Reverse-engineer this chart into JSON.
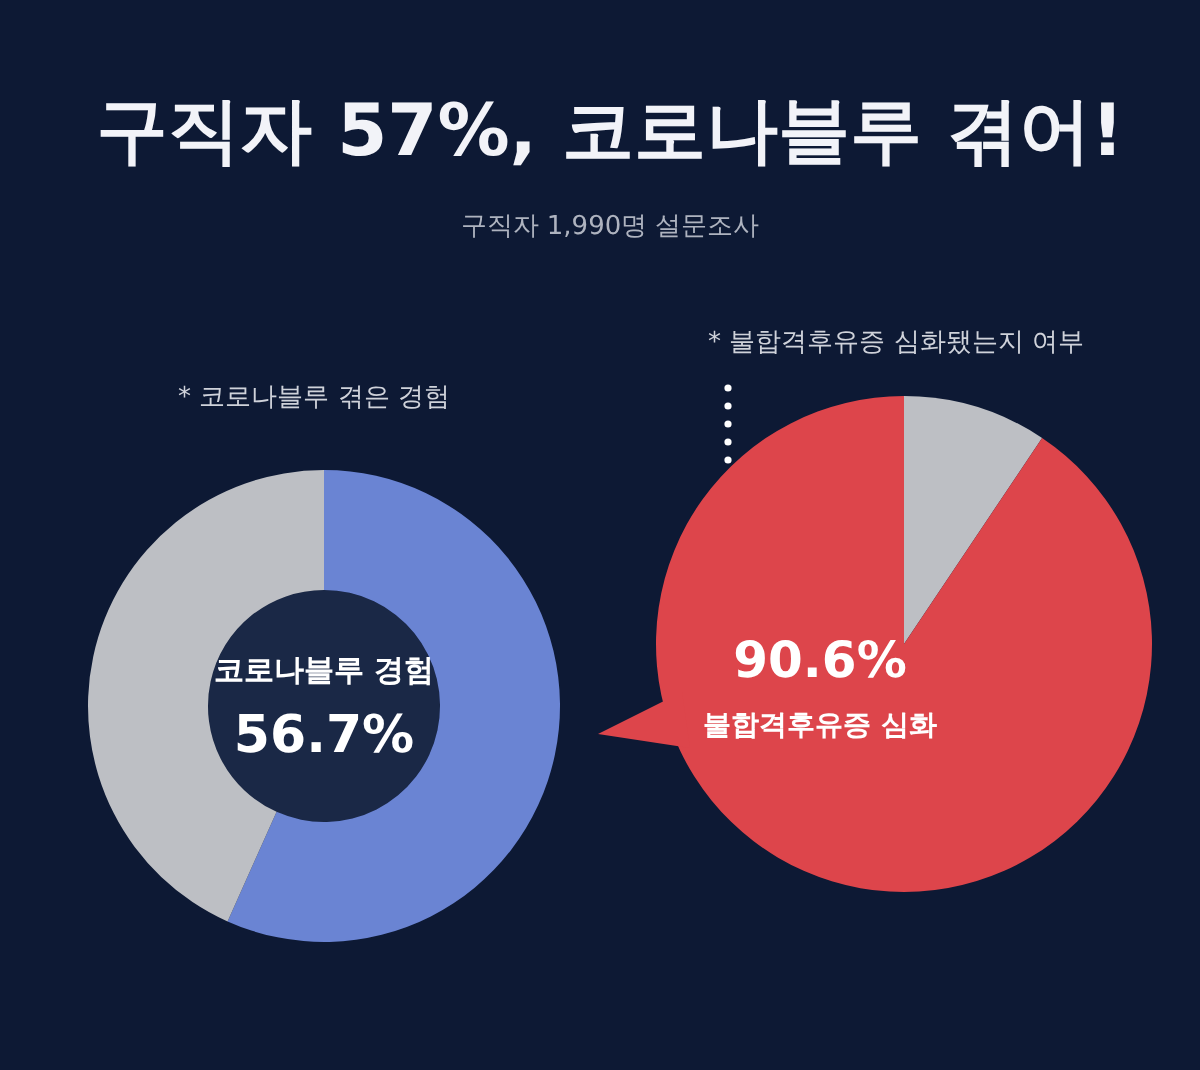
{
  "chart_data": [
    {
      "type": "donut",
      "title": "구직자 57%, 코로나블루 겪어!",
      "subtitle": "구직자 1,990명 설문조사",
      "annotations": [
        "* 코로나블루 겪은 경험"
      ],
      "categories": [
        "코로나블루 경험",
        null
      ],
      "values": [
        56.7,
        43.3
      ],
      "colors": [
        "#6a84d3",
        "#bdbfc4"
      ],
      "value_labels": [
        "56.7%",
        null
      ]
    },
    {
      "type": "pie",
      "title": "* 불합격후유증 심화됐는지 여부",
      "categories": [
        null,
        "불합격후유증 심화"
      ],
      "values": [
        9.4,
        90.6
      ],
      "colors": [
        "#bdbfc4",
        "#dd454b"
      ],
      "value_labels": [
        null,
        "90.6%"
      ]
    }
  ]
}
